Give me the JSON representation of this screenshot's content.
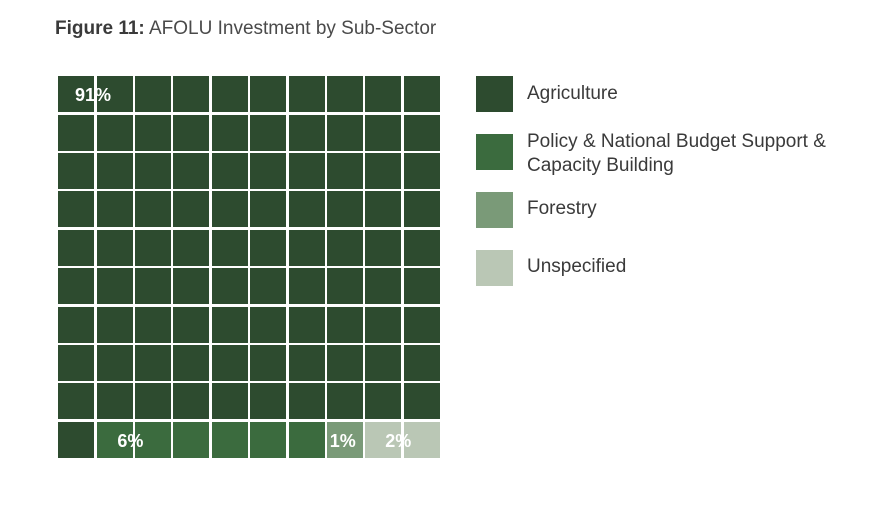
{
  "title": {
    "prefix": "Figure 11:",
    "text": "AFOLU Investment by Sub-Sector"
  },
  "chart_data": {
    "type": "waffle",
    "title": "AFOLU Investment by Sub-Sector",
    "grid": [
      10,
      10
    ],
    "categories": [
      "Agriculture",
      "Policy & National Budget Support & Capacity Building",
      "Forestry",
      "Unspecified"
    ],
    "values": [
      91,
      6,
      1,
      2
    ],
    "labels": [
      "91%",
      "6%",
      "1%",
      "2%"
    ],
    "colors": [
      "#2d4b2f",
      "#3b6b3e",
      "#7a9a78",
      "#bac7b5"
    ]
  },
  "legend": [
    {
      "label": "Agriculture",
      "color": "#2d4b2f"
    },
    {
      "label": "Policy & National Budget Support & Capacity Building",
      "color": "#3b6b3e"
    },
    {
      "label": "Forestry",
      "color": "#7a9a78"
    },
    {
      "label": "Unspecified",
      "color": "#bac7b5"
    }
  ]
}
